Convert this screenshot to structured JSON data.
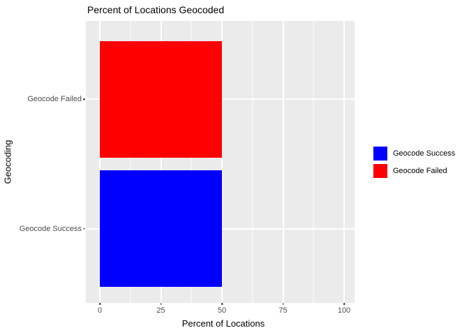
{
  "chart_data": {
    "type": "bar",
    "orientation": "horizontal",
    "title": "Percent of Locations Geocoded",
    "xlabel": "Percent of Locations",
    "ylabel": "Geocoding",
    "categories_top_to_bottom": [
      "Geocode Failed",
      "Geocode Success"
    ],
    "series": [
      {
        "name": "Geocode Failed",
        "value": 50,
        "color": "#FF0000"
      },
      {
        "name": "Geocode Success",
        "value": 50,
        "color": "#0000FF"
      }
    ],
    "xlim": [
      0,
      100
    ],
    "x_major_ticks": [
      0,
      25,
      50,
      75,
      100
    ],
    "x_minor_ticks": [
      12.5,
      37.5,
      62.5,
      87.5
    ],
    "grid": true,
    "legend_position": "right",
    "legend": [
      {
        "label": "Geocode Success",
        "color": "#0000FF"
      },
      {
        "label": "Geocode Failed",
        "color": "#FF0000"
      }
    ]
  },
  "colors": {
    "panel_background": "#EBEBEB",
    "gridline": "#FFFFFF",
    "bar_red": "#FF0000",
    "bar_blue": "#0000FF",
    "tick_label": "#4D4D4D",
    "axis_text": "#000000"
  }
}
